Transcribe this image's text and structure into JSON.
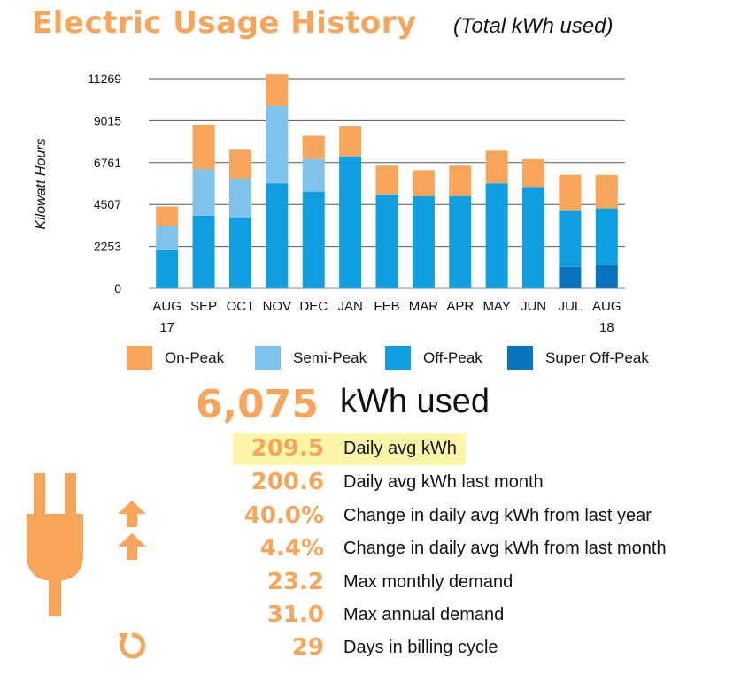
{
  "header": {
    "title": "Electric Usage History",
    "subtitle": "(Total kWh used)"
  },
  "colors": {
    "accent": "#f7a55a",
    "on_peak": "#f7a55a",
    "semi_peak": "#7fc2ec",
    "off_peak": "#0f9fe0",
    "super_off_peak": "#0872bd",
    "highlight": "#fdf5a8"
  },
  "chart_data": {
    "type": "bar",
    "stacked": true,
    "title": "Electric Usage History",
    "subtitle": "(Total kWh used)",
    "ylabel": "Kilowatt Hours",
    "xlabel": "",
    "ylim": [
      0,
      11269
    ],
    "yticks": [
      0,
      2253,
      4507,
      6761,
      9015,
      11269
    ],
    "ytick_labels": [
      "0",
      "2253",
      "4507",
      "6761",
      "9015",
      "11269"
    ],
    "grid": true,
    "legend_position": "bottom",
    "categories": [
      {
        "label": "AUG",
        "sub": "17"
      },
      {
        "label": "SEP",
        "sub": ""
      },
      {
        "label": "OCT",
        "sub": ""
      },
      {
        "label": "NOV",
        "sub": ""
      },
      {
        "label": "DEC",
        "sub": ""
      },
      {
        "label": "JAN",
        "sub": ""
      },
      {
        "label": "FEB",
        "sub": ""
      },
      {
        "label": "MAR",
        "sub": ""
      },
      {
        "label": "APR",
        "sub": ""
      },
      {
        "label": "MAY",
        "sub": ""
      },
      {
        "label": "JUN",
        "sub": ""
      },
      {
        "label": "JUL",
        "sub": ""
      },
      {
        "label": "AUG",
        "sub": "18"
      }
    ],
    "series": [
      {
        "name": "Super Off-Peak",
        "color": "#0872bd",
        "values": [
          0,
          0,
          0,
          0,
          0,
          0,
          0,
          0,
          0,
          0,
          0,
          1150,
          1250
        ]
      },
      {
        "name": "Off-Peak",
        "color": "#0f9fe0",
        "values": [
          2050,
          3900,
          3800,
          5650,
          5200,
          7100,
          5050,
          4950,
          4950,
          5650,
          5450,
          3050,
          3050
        ]
      },
      {
        "name": "Semi-Peak",
        "color": "#7fc2ec",
        "values": [
          1300,
          2500,
          2100,
          4150,
          1750,
          0,
          0,
          0,
          0,
          0,
          0,
          0,
          0
        ]
      },
      {
        "name": "On-Peak",
        "color": "#f7a55a",
        "values": [
          1050,
          2400,
          1550,
          1700,
          1250,
          1600,
          1550,
          1400,
          1650,
          1750,
          1500,
          1900,
          1800
        ]
      }
    ]
  },
  "legend": [
    {
      "label": "On-Peak",
      "color": "#f7a55a"
    },
    {
      "label": "Semi-Peak",
      "color": "#7fc2ec"
    },
    {
      "label": "Off-Peak",
      "color": "#0f9fe0"
    },
    {
      "label": "Super Off-Peak",
      "color": "#0872bd"
    }
  ],
  "summary": {
    "total_value": "6,075",
    "total_label": "kWh used",
    "stats": [
      {
        "value": "209.5",
        "label": "Daily avg kWh",
        "highlighted": true,
        "icon": ""
      },
      {
        "value": "200.6",
        "label": "Daily avg kWh last month",
        "highlighted": false,
        "icon": ""
      },
      {
        "value": "40.0%",
        "label": "Change in daily avg kWh from last year",
        "highlighted": false,
        "icon": "arrow-up-icon"
      },
      {
        "value": "4.4%",
        "label": "Change in daily avg kWh from last month",
        "highlighted": false,
        "icon": "arrow-up-icon"
      },
      {
        "value": "23.2",
        "label": "Max monthly demand",
        "highlighted": false,
        "icon": ""
      },
      {
        "value": "31.0",
        "label": "Max annual demand",
        "highlighted": false,
        "icon": ""
      },
      {
        "value": "29",
        "label": "Days in billing cycle",
        "highlighted": false,
        "icon": "refresh-icon"
      }
    ]
  },
  "icons": {
    "plug": "plug-icon",
    "arrow": "arrow-up-icon",
    "refresh": "refresh-icon"
  }
}
